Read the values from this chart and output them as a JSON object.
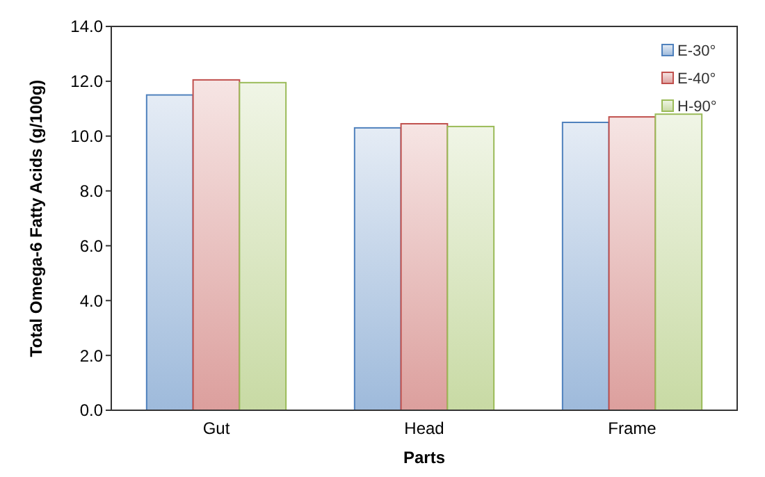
{
  "chart_data": {
    "type": "bar",
    "xlabel": "Parts",
    "ylabel": "Total Omega-6 Fatty Acids (g/100g)",
    "categories": [
      "Gut",
      "Head",
      "Frame"
    ],
    "series": [
      {
        "name": "E-30°",
        "color": "#4f81bd",
        "values": [
          11.5,
          10.3,
          10.5
        ]
      },
      {
        "name": "E-40°",
        "color": "#c0504d",
        "values": [
          12.05,
          10.45,
          10.7
        ]
      },
      {
        "name": "H-90°",
        "color": "#9bbb59",
        "values": [
          11.95,
          10.35,
          10.8
        ]
      }
    ],
    "ylim": [
      0,
      14
    ],
    "yticks": [
      {
        "value": 0,
        "label": "0.0"
      },
      {
        "value": 2,
        "label": "2.0"
      },
      {
        "value": 4,
        "label": "4.0"
      },
      {
        "value": 6,
        "label": "6.0"
      },
      {
        "value": 8,
        "label": "8.0"
      },
      {
        "value": 10,
        "label": "10.0"
      },
      {
        "value": 12,
        "label": "12.0"
      },
      {
        "value": 14,
        "label": "14.0"
      }
    ],
    "grid": false,
    "legend": "top right"
  }
}
